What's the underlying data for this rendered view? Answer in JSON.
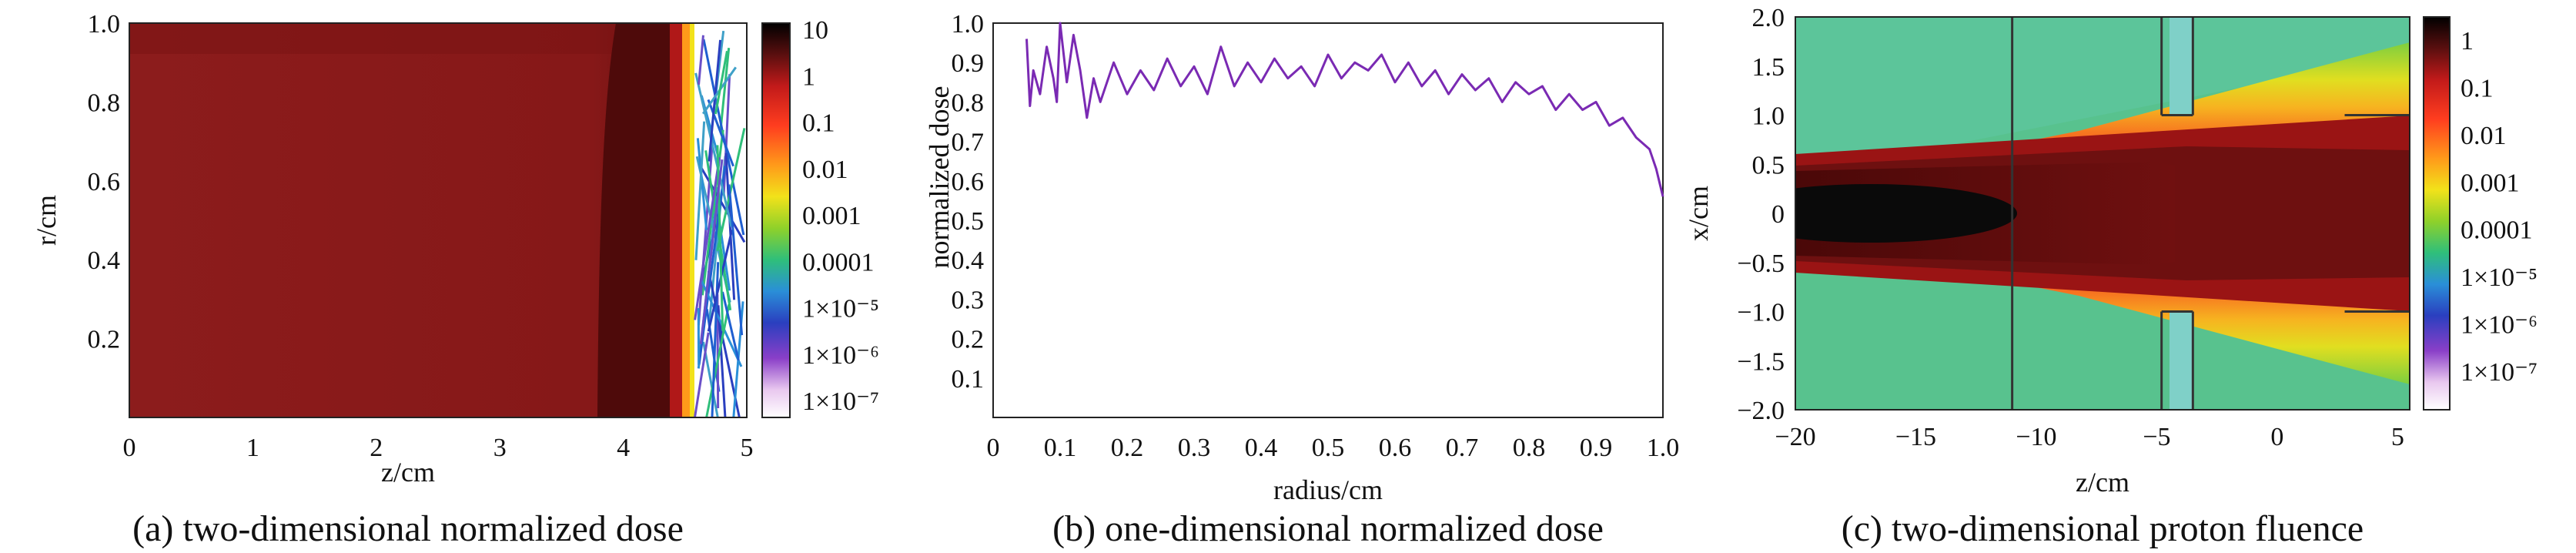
{
  "chart_data": [
    {
      "type": "heatmap",
      "title": "",
      "caption": "(a) two-dimensional normalized dose",
      "xlabel": "z/cm",
      "ylabel": "r/cm",
      "xlim": [
        0,
        5
      ],
      "ylim": [
        0,
        1.0
      ],
      "x_ticks": [
        "0",
        "1",
        "2",
        "3",
        "4",
        "5"
      ],
      "y_ticks": [
        "0.2",
        "0.4",
        "0.6",
        "0.8",
        "1.0"
      ],
      "colorbar_labels": [
        "10",
        "1",
        "0.1",
        "0.01",
        "0.001",
        "0.0001",
        "1×10⁻⁵",
        "1×10⁻⁶",
        "1×10⁻⁷"
      ],
      "log_scale": true,
      "plateau_color": "#8a1a1a",
      "dose_falloff_z_cm": [
        3.9,
        4.3,
        4.5
      ],
      "track_region_z_cm": [
        4.5,
        5.0
      ]
    },
    {
      "type": "line",
      "title": "",
      "caption": "(b) one-dimensional normalized dose",
      "xlabel": "radius/cm",
      "ylabel": "normalized dose",
      "xlim": [
        0,
        1.0
      ],
      "ylim": [
        0,
        1.0
      ],
      "x_ticks": [
        "0",
        "0.1",
        "0.2",
        "0.3",
        "0.4",
        "0.5",
        "0.6",
        "0.7",
        "0.8",
        "0.9",
        "1.0"
      ],
      "y_ticks": [
        "0.1",
        "0.2",
        "0.3",
        "0.4",
        "0.5",
        "0.6",
        "0.7",
        "0.8",
        "0.9",
        "1.0"
      ],
      "line_color": "#7a2ab3",
      "series": [
        {
          "x": [
            0.05,
            0.055,
            0.06,
            0.07,
            0.08,
            0.09,
            0.095,
            0.1,
            0.11,
            0.12,
            0.13,
            0.14,
            0.15,
            0.16,
            0.18,
            0.2,
            0.22,
            0.24,
            0.26,
            0.28,
            0.3,
            0.32,
            0.34,
            0.36,
            0.38,
            0.4,
            0.42,
            0.44,
            0.46,
            0.48,
            0.5,
            0.52,
            0.54,
            0.56,
            0.58,
            0.6,
            0.62,
            0.64,
            0.66,
            0.68,
            0.7,
            0.72,
            0.74,
            0.76,
            0.78,
            0.8,
            0.82,
            0.84,
            0.86,
            0.88,
            0.9,
            0.92,
            0.94,
            0.96,
            0.98,
            0.99,
            1.0
          ],
          "y": [
            0.96,
            0.79,
            0.88,
            0.82,
            0.94,
            0.86,
            0.8,
            1.0,
            0.85,
            0.97,
            0.88,
            0.76,
            0.86,
            0.8,
            0.9,
            0.82,
            0.88,
            0.83,
            0.91,
            0.84,
            0.89,
            0.82,
            0.94,
            0.84,
            0.9,
            0.85,
            0.91,
            0.86,
            0.89,
            0.84,
            0.92,
            0.86,
            0.9,
            0.88,
            0.92,
            0.85,
            0.9,
            0.84,
            0.88,
            0.82,
            0.87,
            0.83,
            0.86,
            0.8,
            0.85,
            0.82,
            0.84,
            0.78,
            0.82,
            0.78,
            0.8,
            0.74,
            0.76,
            0.71,
            0.68,
            0.63,
            0.56
          ]
        }
      ]
    },
    {
      "type": "heatmap",
      "title": "",
      "caption": "(c) two-dimensional proton fluence",
      "xlabel": "z/cm",
      "ylabel": "x/cm",
      "xlim": [
        -20,
        5.5
      ],
      "ylim": [
        -2.0,
        2.0
      ],
      "x_ticks": [
        "−20",
        "−15",
        "−10",
        "−5",
        "0",
        "5"
      ],
      "y_ticks": [
        "−2.0",
        "−1.5",
        "−1.0",
        "−0.5",
        "0",
        "0.5",
        "1.0",
        "1.5",
        "2.0"
      ],
      "colorbar_labels": [
        "1",
        "0.1",
        "0.01",
        "0.001",
        "0.0001",
        "1×10⁻⁵",
        "1×10⁻⁶",
        "1×10⁻⁷"
      ],
      "log_scale": true,
      "structure_lines_z_cm": [
        -11,
        -4.8,
        -3.5
      ],
      "aperture_half_width_cm": 1.0
    }
  ]
}
